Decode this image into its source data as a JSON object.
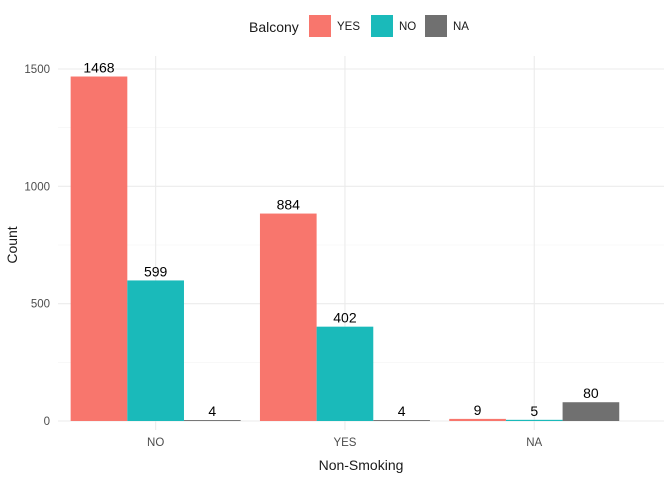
{
  "chart_data": {
    "type": "bar",
    "xlabel": "Non-Smoking",
    "ylabel": "Count",
    "categories": [
      "NO",
      "YES",
      "NA"
    ],
    "ylim": [
      0,
      1560
    ],
    "yticks": [
      0,
      500,
      1000,
      1500
    ],
    "grid": true,
    "legend": {
      "title": "Balcony",
      "placement": "top"
    },
    "series": [
      {
        "name": "YES",
        "color": "#F8766D",
        "values": [
          1468,
          884,
          9
        ]
      },
      {
        "name": "NO",
        "color": "#1ABABA",
        "values": [
          599,
          402,
          5
        ]
      },
      {
        "name": "NA",
        "color": "#707070",
        "values": [
          4,
          4,
          80
        ]
      }
    ]
  }
}
